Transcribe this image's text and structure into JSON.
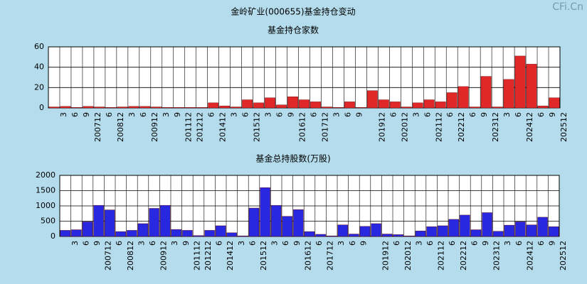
{
  "watermark": "CFi.Cn",
  "chart_data": [
    {
      "type": "bar",
      "title": "金岭矿业(000655)基金持仓变动",
      "subtitle": "基金持仓家数",
      "categories": [
        "3",
        "6",
        "9",
        "200712",
        "6",
        "200812",
        "3",
        "6",
        "200912",
        "3",
        "9",
        "201112",
        "201212",
        "6",
        "201412",
        "3",
        "6",
        "201512",
        "3",
        "6",
        "9",
        "201612",
        "6",
        "201712",
        "3",
        "6",
        "9",
        null,
        "201912",
        "6",
        "202012",
        "3",
        "6",
        "202112",
        "6",
        "202212",
        "6",
        "9",
        "202312",
        "3",
        "6",
        "202412",
        "6",
        "9",
        "202512"
      ],
      "values": [
        1,
        1.5,
        0.5,
        1.5,
        1,
        0.5,
        1,
        1.5,
        1.5,
        1,
        0.5,
        0.5,
        0.5,
        0.5,
        5,
        2,
        1,
        8,
        5,
        10,
        3,
        11,
        8,
        6,
        1,
        0.5,
        6,
        0.5,
        17,
        8,
        6,
        1,
        5,
        8,
        6,
        15,
        21,
        1,
        31,
        1,
        28,
        51,
        43,
        2,
        10
      ],
      "color": "#e02828",
      "ylim": [
        0,
        60
      ],
      "yticks": [
        0,
        20,
        40,
        60
      ],
      "grid": true
    },
    {
      "type": "bar",
      "subtitle": "基金总持股数(万股)",
      "categories": [
        "3",
        "6",
        "9",
        "200712",
        "6",
        "200812",
        "3",
        "6",
        "200912",
        "3",
        "9",
        "201112",
        "201212",
        "6",
        "201412",
        "3",
        "6",
        "201512",
        "3",
        "6",
        "9",
        "201612",
        "6",
        "201712",
        "3",
        "6",
        "9",
        null,
        "201912",
        "6",
        "202012",
        "3",
        "6",
        "202112",
        "6",
        "202212",
        "6",
        "9",
        "202312",
        "3",
        "6",
        "202412",
        "6",
        "9",
        "202512"
      ],
      "values": [
        200,
        220,
        480,
        1020,
        870,
        160,
        200,
        420,
        920,
        1020,
        230,
        200,
        30,
        200,
        350,
        120,
        20,
        930,
        1600,
        1020,
        660,
        880,
        160,
        70,
        20,
        380,
        80,
        330,
        420,
        80,
        60,
        20,
        180,
        320,
        350,
        560,
        700,
        220,
        780,
        170,
        370,
        480,
        380,
        630,
        320
      ],
      "color": "#2828e0",
      "ylim": [
        0,
        2000
      ],
      "yticks": [
        0,
        500,
        1000,
        1500,
        2000
      ],
      "grid": true
    }
  ]
}
